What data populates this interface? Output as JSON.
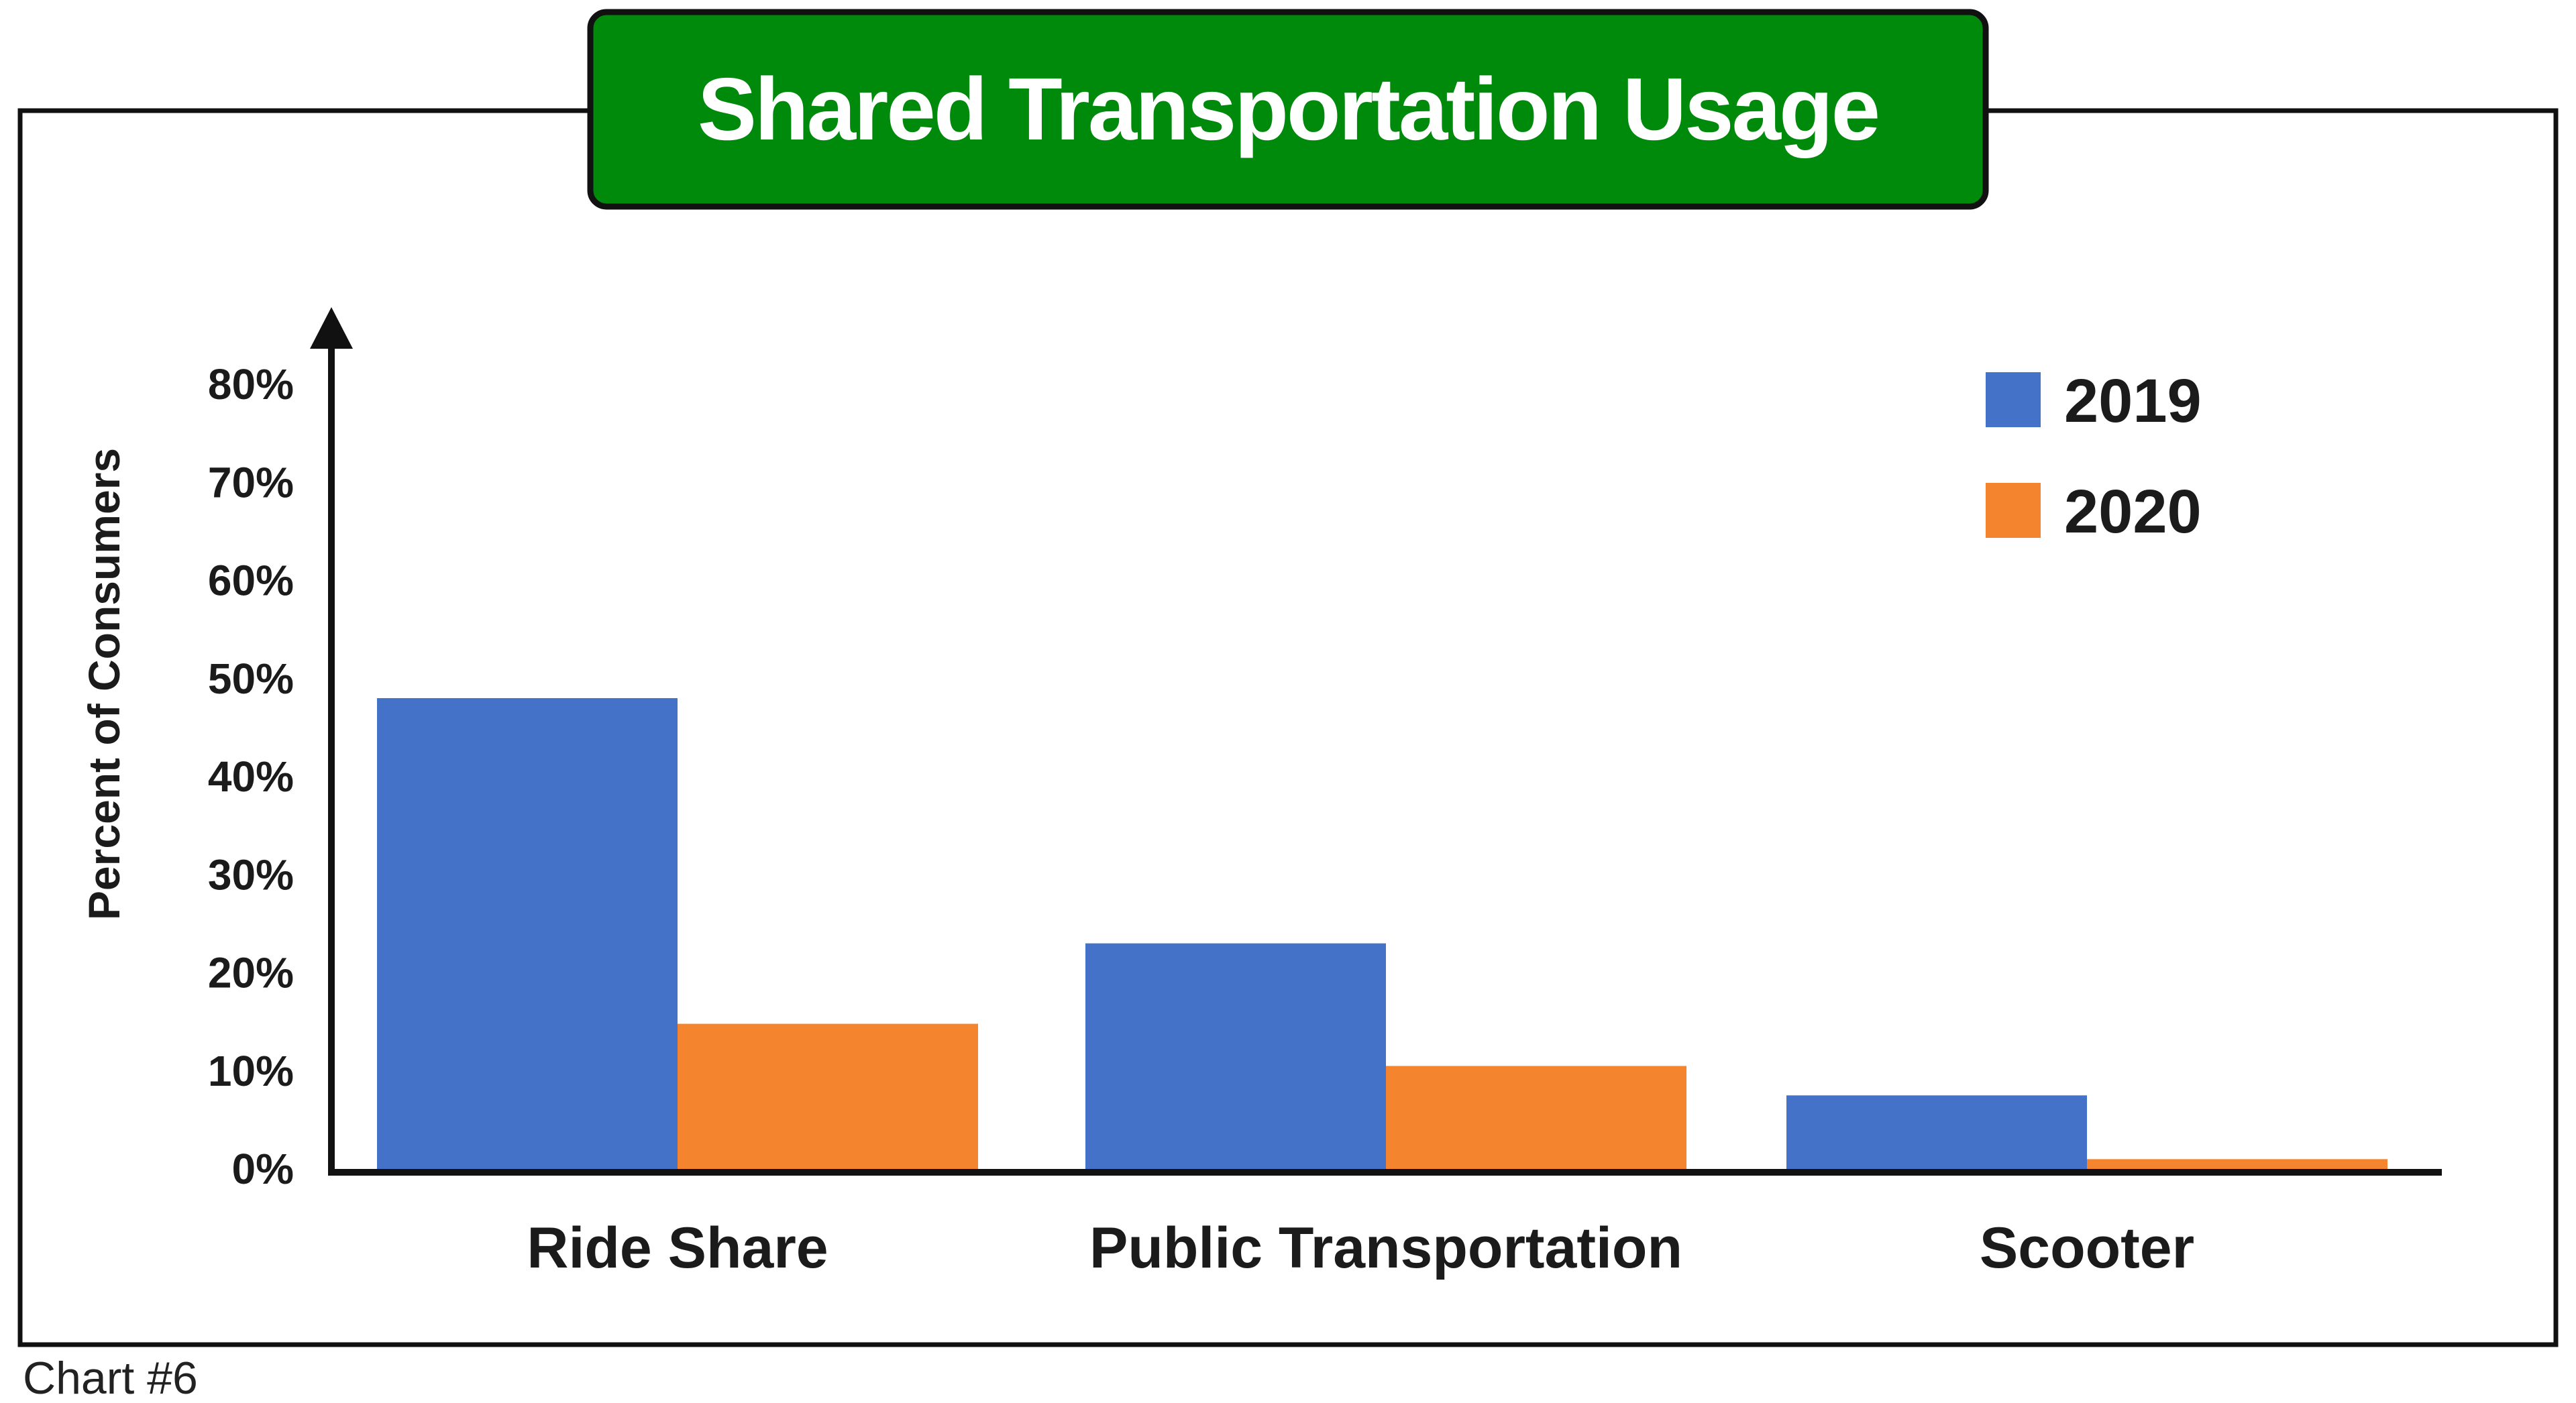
{
  "chart_data": {
    "type": "bar",
    "title": "Shared Transportation Usage",
    "ylabel": "Percent of Consumers",
    "xlabel": "",
    "categories": [
      "Ride Share",
      "Public Transportation",
      "Scooter"
    ],
    "series": [
      {
        "name": "2019",
        "color": "#4472c8",
        "values": [
          48,
          23,
          7.5
        ]
      },
      {
        "name": "2020",
        "color": "#f5842f",
        "values": [
          14.8,
          10.5,
          1
        ]
      }
    ],
    "ylim": [
      0,
      80
    ],
    "yticks": [
      "0%",
      "10%",
      "20%",
      "30%",
      "40%",
      "50%",
      "60%",
      "70%",
      "80%"
    ],
    "legend_position": "top-right",
    "grid": false
  },
  "caption": "Chart #6",
  "colors": {
    "title_bg": "#008a0c",
    "frame": "#111111"
  }
}
